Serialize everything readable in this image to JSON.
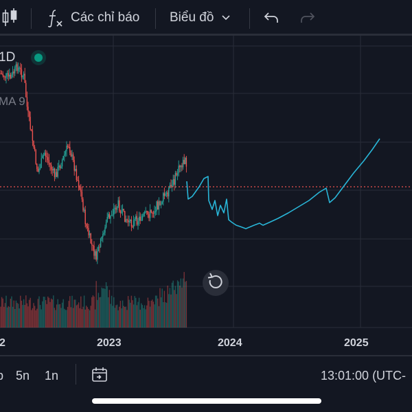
{
  "toolbar": {
    "indicators_label": "Các chỉ báo",
    "chart_type_label": "Biểu đồ"
  },
  "legend": {
    "interval": "1D",
    "ma_label": "MA 9"
  },
  "chart_data": {
    "type": "candlestick",
    "x_ticks": [
      "2",
      "2023",
      "2024",
      "2025"
    ],
    "forecast_line_color": "#29b6d8",
    "up_color": "#26a69a",
    "down_color": "#ef5350",
    "price_line_color": "#ef5350",
    "grid": true
  },
  "bottombar": {
    "range_partial": "b",
    "range_5y": "5n",
    "range_1y": "1n",
    "clock": "13:01:00 (UTC-"
  },
  "colors": {
    "background": "#131722",
    "status_dot": "#089981",
    "grid": "#2a2e39"
  }
}
